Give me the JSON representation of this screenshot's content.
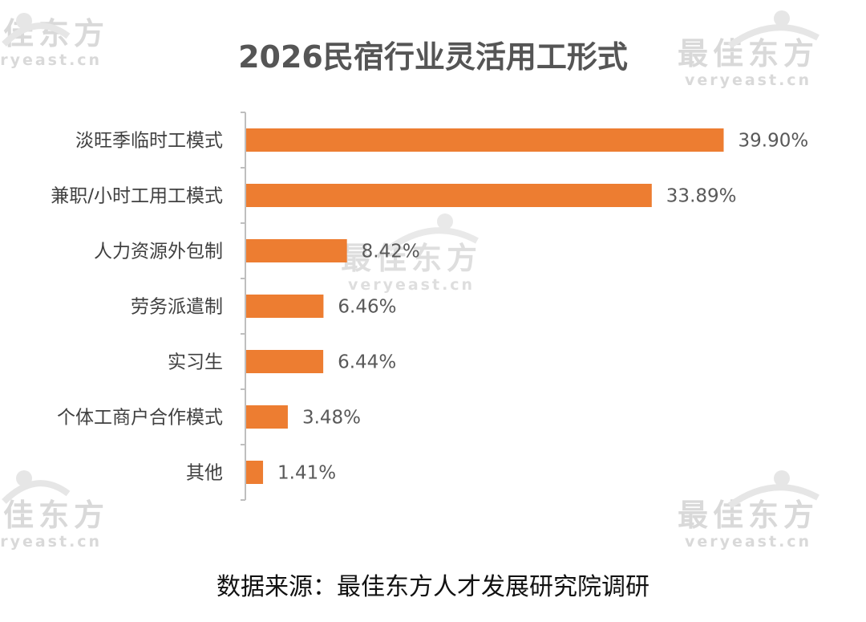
{
  "watermark": {
    "brand_cn": "最佳东方",
    "brand_url": "veryeast.cn",
    "color": "#d9d9d9"
  },
  "source_note": "数据来源：最佳东方人才发展研究院调研",
  "chart_data": {
    "type": "bar",
    "orientation": "horizontal",
    "title": "2026民宿行业灵活用工形式",
    "categories": [
      "淡旺季临时工模式",
      "兼职/小时工用工模式",
      "人力资源外包制",
      "劳务派遣制",
      "实习生",
      "个体工商户合作模式",
      "其他"
    ],
    "values": [
      39.9,
      33.89,
      8.42,
      6.46,
      6.44,
      3.48,
      1.41
    ],
    "value_labels": [
      "39.90%",
      "33.89%",
      "8.42%",
      "6.46%",
      "6.44%",
      "3.48%",
      "1.41%"
    ],
    "unit": "%",
    "bar_color": "#ed7d31",
    "axis_color": "#bfbfbf",
    "xlim": [
      0,
      40
    ],
    "grid": false,
    "legend": "none"
  }
}
